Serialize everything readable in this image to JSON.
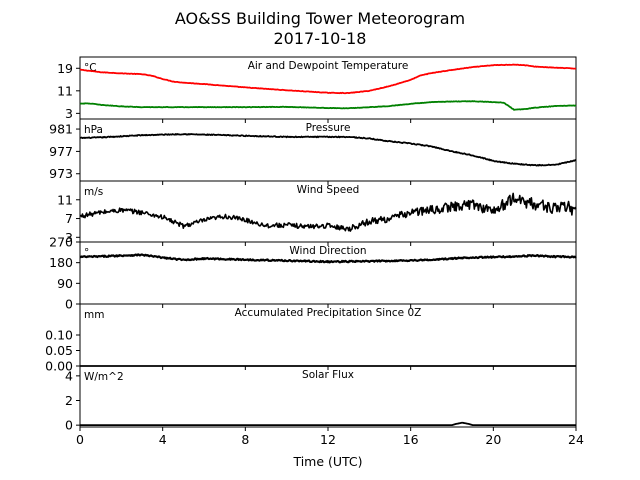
{
  "title_line1": "AO&SS Building Tower Meteorogram",
  "title_line2": "2017-10-18",
  "xlabel": "Time (UTC)",
  "x_ticks": [
    "0",
    "4",
    "8",
    "12",
    "16",
    "20",
    "24"
  ],
  "colors": {
    "temperature": "#ff0000",
    "dewpoint": "#008000",
    "data": "#000000"
  },
  "chart_data": [
    {
      "type": "line",
      "title": "Air and Dewpoint Temperature",
      "unit": "°C",
      "xlim": [
        0,
        24
      ],
      "ylim": [
        1,
        23
      ],
      "yticks": [
        3,
        11,
        19
      ],
      "ytick_labels": [
        "3",
        "11",
        "19"
      ],
      "series": [
        {
          "key": "temperature",
          "color": "#ff0000",
          "x": [
            0,
            1,
            2,
            3,
            3.5,
            4,
            4.5,
            5,
            6,
            8,
            10,
            12,
            13,
            14,
            15,
            16,
            16.5,
            17,
            18,
            19,
            20,
            21,
            21.5,
            22,
            23,
            24
          ],
          "y": [
            18.5,
            17.6,
            17.2,
            16.9,
            16.3,
            15.2,
            14.3,
            13.9,
            13.4,
            12.2,
            11.2,
            10.3,
            10.2,
            11,
            12.7,
            14.9,
            16.5,
            17.3,
            18.4,
            19.4,
            20.1,
            20.3,
            20.1,
            19.6,
            19.2,
            18.9
          ]
        },
        {
          "key": "dewpoint",
          "color": "#008000",
          "x": [
            0,
            0.5,
            1,
            2,
            3,
            5,
            8,
            10,
            12,
            13,
            14,
            15,
            16,
            17,
            18,
            19,
            20,
            20.5,
            21,
            21.5,
            22,
            23,
            24
          ],
          "y": [
            6.5,
            6.5,
            6,
            5.5,
            5.2,
            5.2,
            5.2,
            5.3,
            4.9,
            4.8,
            5.2,
            5.6,
            6.4,
            7,
            7.2,
            7.3,
            7,
            6.8,
            4.3,
            4.5,
            5,
            5.6,
            5.8
          ]
        }
      ]
    },
    {
      "type": "line",
      "title": "Pressure",
      "unit": "hPa",
      "xlim": [
        0,
        24
      ],
      "ylim": [
        971.7,
        982.8
      ],
      "yticks": [
        973,
        977,
        981
      ],
      "ytick_labels": [
        "973",
        "977",
        "981"
      ],
      "series": [
        {
          "key": "data",
          "color": "#000000",
          "x": [
            0,
            1,
            2,
            3,
            4,
            5,
            6,
            8,
            10,
            12,
            13,
            14,
            15,
            16,
            17,
            18,
            19,
            20,
            21,
            22,
            23,
            24
          ],
          "y": [
            979.4,
            979.5,
            979.7,
            979.9,
            980,
            980.1,
            980,
            979.8,
            979.6,
            979.6,
            979.6,
            979.3,
            978.8,
            978.4,
            977.9,
            977,
            976.3,
            975.3,
            974.8,
            974.5,
            974.6,
            975.4
          ]
        }
      ]
    },
    {
      "type": "line",
      "title": "Wind Speed",
      "unit": "m/s",
      "xlim": [
        0,
        24
      ],
      "ylim": [
        2,
        15
      ],
      "yticks": [
        3,
        7,
        11
      ],
      "ytick_labels": [
        "3",
        "7",
        "11"
      ],
      "series": [
        {
          "key": "data",
          "color": "#000000",
          "x": [
            0,
            1,
            2,
            3,
            4,
            5,
            6,
            7,
            8,
            9,
            10,
            11,
            12,
            13,
            14,
            15,
            16,
            17,
            18,
            19,
            20,
            21,
            22,
            23,
            24
          ],
          "y": [
            7.5,
            8.3,
            8.8,
            8.3,
            7.3,
            5.4,
            6.6,
            7.5,
            6.7,
            5.5,
            5.6,
            5.3,
            5.5,
            4.8,
            6.4,
            7,
            8.3,
            8.8,
            9.5,
            10.1,
            8.6,
            11.3,
            10,
            9.3,
            9.1
          ]
        }
      ]
    },
    {
      "type": "line",
      "title": "Wind Direction",
      "unit": "°",
      "xlim": [
        0,
        24
      ],
      "ylim": [
        0,
        270
      ],
      "yticks": [
        0,
        90,
        180,
        270
      ],
      "ytick_labels": [
        "0",
        "90",
        "180",
        "270"
      ],
      "series": [
        {
          "key": "data",
          "color": "#000000",
          "x": [
            0,
            1,
            2,
            3,
            4,
            5,
            6,
            8,
            10,
            12,
            14,
            16,
            17,
            18,
            19,
            20,
            21,
            22,
            23,
            24
          ],
          "y": [
            205,
            207,
            211,
            214,
            202,
            192,
            198,
            193,
            189,
            184,
            186,
            190,
            192,
            198,
            203,
            204,
            207,
            211,
            206,
            205
          ]
        }
      ]
    },
    {
      "type": "line",
      "title": "Accumulated Precipitation Since 0Z",
      "unit": "mm",
      "xlim": [
        0,
        24
      ],
      "ylim": [
        0,
        0.2
      ],
      "yticks": [
        0,
        0.05,
        0.1
      ],
      "ytick_labels": [
        "0.00",
        "0.05",
        "0.10"
      ],
      "series": [
        {
          "key": "data",
          "color": "#000000",
          "x": [
            0,
            24
          ],
          "y": [
            0,
            0
          ]
        }
      ]
    },
    {
      "type": "line",
      "title": "Solar Flux",
      "unit": "W/m^2",
      "xlim": [
        0,
        24
      ],
      "ylim": [
        -0.15,
        4.8
      ],
      "yticks": [
        0,
        2,
        4
      ],
      "ytick_labels": [
        "0",
        "2",
        "4"
      ],
      "series": [
        {
          "key": "data",
          "color": "#000000",
          "x": [
            0,
            18,
            18.2,
            18.5,
            18.8,
            19,
            24
          ],
          "y": [
            0,
            0,
            0.1,
            0.2,
            0.1,
            0,
            0
          ]
        }
      ]
    }
  ]
}
